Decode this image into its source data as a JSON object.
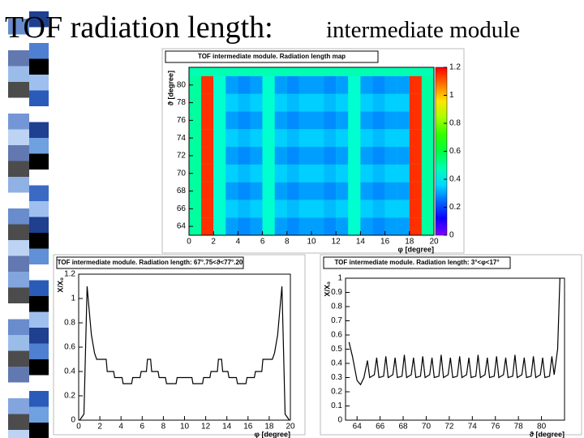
{
  "slide": {
    "title": "TOF radiation length:",
    "subtitle": "intermediate module"
  },
  "chart_data": [
    {
      "type": "heatmap",
      "title": "TOF intermediate module. Radiation length map",
      "x_label": "φ [degree]",
      "y_label": "ϑ [degree]",
      "x_bins": [
        0,
        1,
        2,
        3,
        4,
        5,
        6,
        7,
        8,
        9,
        10,
        11,
        12,
        13,
        14,
        15,
        16,
        17,
        18,
        19,
        20
      ],
      "y_bins": [
        63,
        65,
        67,
        69,
        71,
        73,
        75,
        77,
        79,
        81
      ],
      "z": [
        [
          0.5,
          1.15,
          0.45,
          0.3,
          0.28,
          0.3,
          0.45,
          0.3,
          0.28,
          0.3,
          0.3,
          0.28,
          0.3,
          0.45,
          0.3,
          0.28,
          0.3,
          0.3,
          1.15,
          0.5
        ],
        [
          0.5,
          1.15,
          0.45,
          0.35,
          0.33,
          0.35,
          0.45,
          0.35,
          0.33,
          0.35,
          0.35,
          0.33,
          0.35,
          0.45,
          0.35,
          0.33,
          0.35,
          0.35,
          1.15,
          0.5
        ],
        [
          0.5,
          1.15,
          0.45,
          0.3,
          0.28,
          0.3,
          0.45,
          0.3,
          0.28,
          0.3,
          0.3,
          0.28,
          0.3,
          0.45,
          0.3,
          0.28,
          0.3,
          0.3,
          1.15,
          0.5
        ],
        [
          0.5,
          1.15,
          0.45,
          0.35,
          0.33,
          0.35,
          0.45,
          0.35,
          0.33,
          0.35,
          0.35,
          0.33,
          0.35,
          0.45,
          0.35,
          0.33,
          0.35,
          0.35,
          1.15,
          0.5
        ],
        [
          0.5,
          1.15,
          0.45,
          0.3,
          0.28,
          0.3,
          0.45,
          0.3,
          0.28,
          0.3,
          0.3,
          0.28,
          0.3,
          0.45,
          0.3,
          0.28,
          0.3,
          0.3,
          1.15,
          0.5
        ],
        [
          0.5,
          1.15,
          0.45,
          0.35,
          0.33,
          0.35,
          0.45,
          0.35,
          0.33,
          0.35,
          0.35,
          0.33,
          0.35,
          0.45,
          0.35,
          0.33,
          0.35,
          0.35,
          1.15,
          0.5
        ],
        [
          0.5,
          1.15,
          0.45,
          0.3,
          0.28,
          0.3,
          0.45,
          0.3,
          0.28,
          0.3,
          0.3,
          0.28,
          0.3,
          0.45,
          0.3,
          0.28,
          0.3,
          0.3,
          1.15,
          0.5
        ],
        [
          0.5,
          1.15,
          0.45,
          0.35,
          0.33,
          0.35,
          0.45,
          0.35,
          0.33,
          0.35,
          0.35,
          0.33,
          0.35,
          0.45,
          0.35,
          0.33,
          0.35,
          0.35,
          1.15,
          0.5
        ],
        [
          0.5,
          1.15,
          0.45,
          0.3,
          0.28,
          0.3,
          0.45,
          0.3,
          0.28,
          0.3,
          0.3,
          0.28,
          0.3,
          0.45,
          0.3,
          0.28,
          0.3,
          0.3,
          1.15,
          0.5
        ]
      ],
      "xlim": [
        0,
        20
      ],
      "ylim": [
        63,
        82
      ],
      "zlim": [
        0,
        1.2
      ],
      "xticks": [
        0,
        2,
        4,
        6,
        8,
        10,
        12,
        14,
        16,
        18,
        20
      ],
      "yticks": [
        64,
        66,
        68,
        70,
        72,
        74,
        76,
        78,
        80
      ],
      "zticks": [
        0,
        0.2,
        0.4,
        0.6,
        0.8,
        1,
        1.2
      ]
    },
    {
      "type": "line",
      "title": "TOF intermediate module. Radiation length: 67°.75<ϑ<77°.20",
      "x_label": "φ [degree]",
      "y_label": "X/X₀",
      "color": "#000000",
      "x": [
        0.1,
        0.5,
        0.8,
        1.0,
        1.2,
        1.5,
        1.7,
        2.6,
        2.7,
        3.3,
        3.4,
        4.1,
        4.2,
        5.0,
        5.1,
        5.8,
        5.9,
        6.4,
        6.5,
        6.8,
        6.9,
        7.5,
        7.6,
        8.2,
        8.3,
        9.2,
        9.3,
        10.7,
        10.8,
        11.7,
        11.8,
        12.4,
        12.5,
        13.1,
        13.2,
        13.5,
        13.6,
        14.1,
        14.2,
        14.9,
        15.0,
        15.8,
        15.9,
        16.6,
        16.7,
        17.3,
        17.4,
        18.3,
        18.5,
        18.8,
        19.0,
        19.2,
        19.5,
        19.9
      ],
      "values": [
        0,
        0.05,
        1.1,
        0.9,
        0.7,
        0.55,
        0.5,
        0.5,
        0.4,
        0.4,
        0.35,
        0.35,
        0.3,
        0.3,
        0.35,
        0.35,
        0.4,
        0.4,
        0.5,
        0.5,
        0.4,
        0.4,
        0.35,
        0.35,
        0.3,
        0.3,
        0.35,
        0.35,
        0.3,
        0.3,
        0.35,
        0.35,
        0.4,
        0.4,
        0.5,
        0.5,
        0.4,
        0.4,
        0.35,
        0.35,
        0.3,
        0.3,
        0.35,
        0.35,
        0.4,
        0.4,
        0.5,
        0.5,
        0.55,
        0.7,
        0.9,
        1.1,
        0.05,
        0
      ],
      "xlim": [
        0,
        20
      ],
      "ylim": [
        0,
        1.2
      ],
      "xticks": [
        0,
        2,
        4,
        6,
        8,
        10,
        12,
        14,
        16,
        18,
        20
      ],
      "yticks": [
        0,
        0.2,
        0.4,
        0.6,
        0.8,
        1,
        1.2
      ]
    },
    {
      "type": "line",
      "title": "TOF intermediate module. Radiation length: 3°<φ<17°",
      "x_label": "ϑ [degree]",
      "y_label": "X/X₀",
      "color": "#000000",
      "x": [
        63.3,
        63.6,
        64.0,
        64.3,
        64.6,
        64.9,
        65.1,
        65.5,
        65.7,
        65.9,
        66.3,
        66.5,
        66.7,
        67.1,
        67.3,
        67.5,
        67.9,
        68.1,
        68.3,
        68.7,
        68.9,
        69.1,
        69.5,
        69.7,
        69.9,
        70.3,
        70.5,
        70.7,
        71.1,
        71.3,
        71.5,
        71.9,
        72.1,
        72.3,
        72.7,
        72.9,
        73.1,
        73.5,
        73.7,
        73.9,
        74.3,
        74.5,
        74.7,
        75.1,
        75.3,
        75.5,
        75.9,
        76.1,
        76.3,
        76.7,
        76.9,
        77.1,
        77.5,
        77.7,
        77.9,
        78.3,
        78.5,
        78.7,
        79.1,
        79.3,
        79.5,
        79.9,
        80.1,
        80.3,
        80.7,
        80.9,
        81.1,
        81.4,
        81.6
      ],
      "values": [
        0.55,
        0.45,
        0.28,
        0.25,
        0.3,
        0.42,
        0.3,
        0.32,
        0.44,
        0.3,
        0.31,
        0.45,
        0.3,
        0.32,
        0.44,
        0.3,
        0.31,
        0.46,
        0.3,
        0.32,
        0.44,
        0.3,
        0.31,
        0.45,
        0.3,
        0.32,
        0.44,
        0.3,
        0.31,
        0.46,
        0.3,
        0.32,
        0.44,
        0.3,
        0.31,
        0.45,
        0.3,
        0.32,
        0.44,
        0.3,
        0.31,
        0.46,
        0.3,
        0.32,
        0.44,
        0.3,
        0.31,
        0.45,
        0.3,
        0.32,
        0.44,
        0.3,
        0.31,
        0.46,
        0.3,
        0.32,
        0.44,
        0.3,
        0.31,
        0.45,
        0.3,
        0.32,
        0.44,
        0.3,
        0.31,
        0.45,
        0.32,
        0.5,
        1.0
      ],
      "xlim": [
        63,
        82
      ],
      "ylim": [
        0,
        1
      ],
      "xticks": [
        64,
        66,
        68,
        70,
        72,
        74,
        76,
        78,
        80
      ],
      "yticks": [
        0,
        0.1,
        0.2,
        0.3,
        0.4,
        0.5,
        0.6,
        0.7,
        0.8,
        0.9,
        1
      ]
    }
  ]
}
